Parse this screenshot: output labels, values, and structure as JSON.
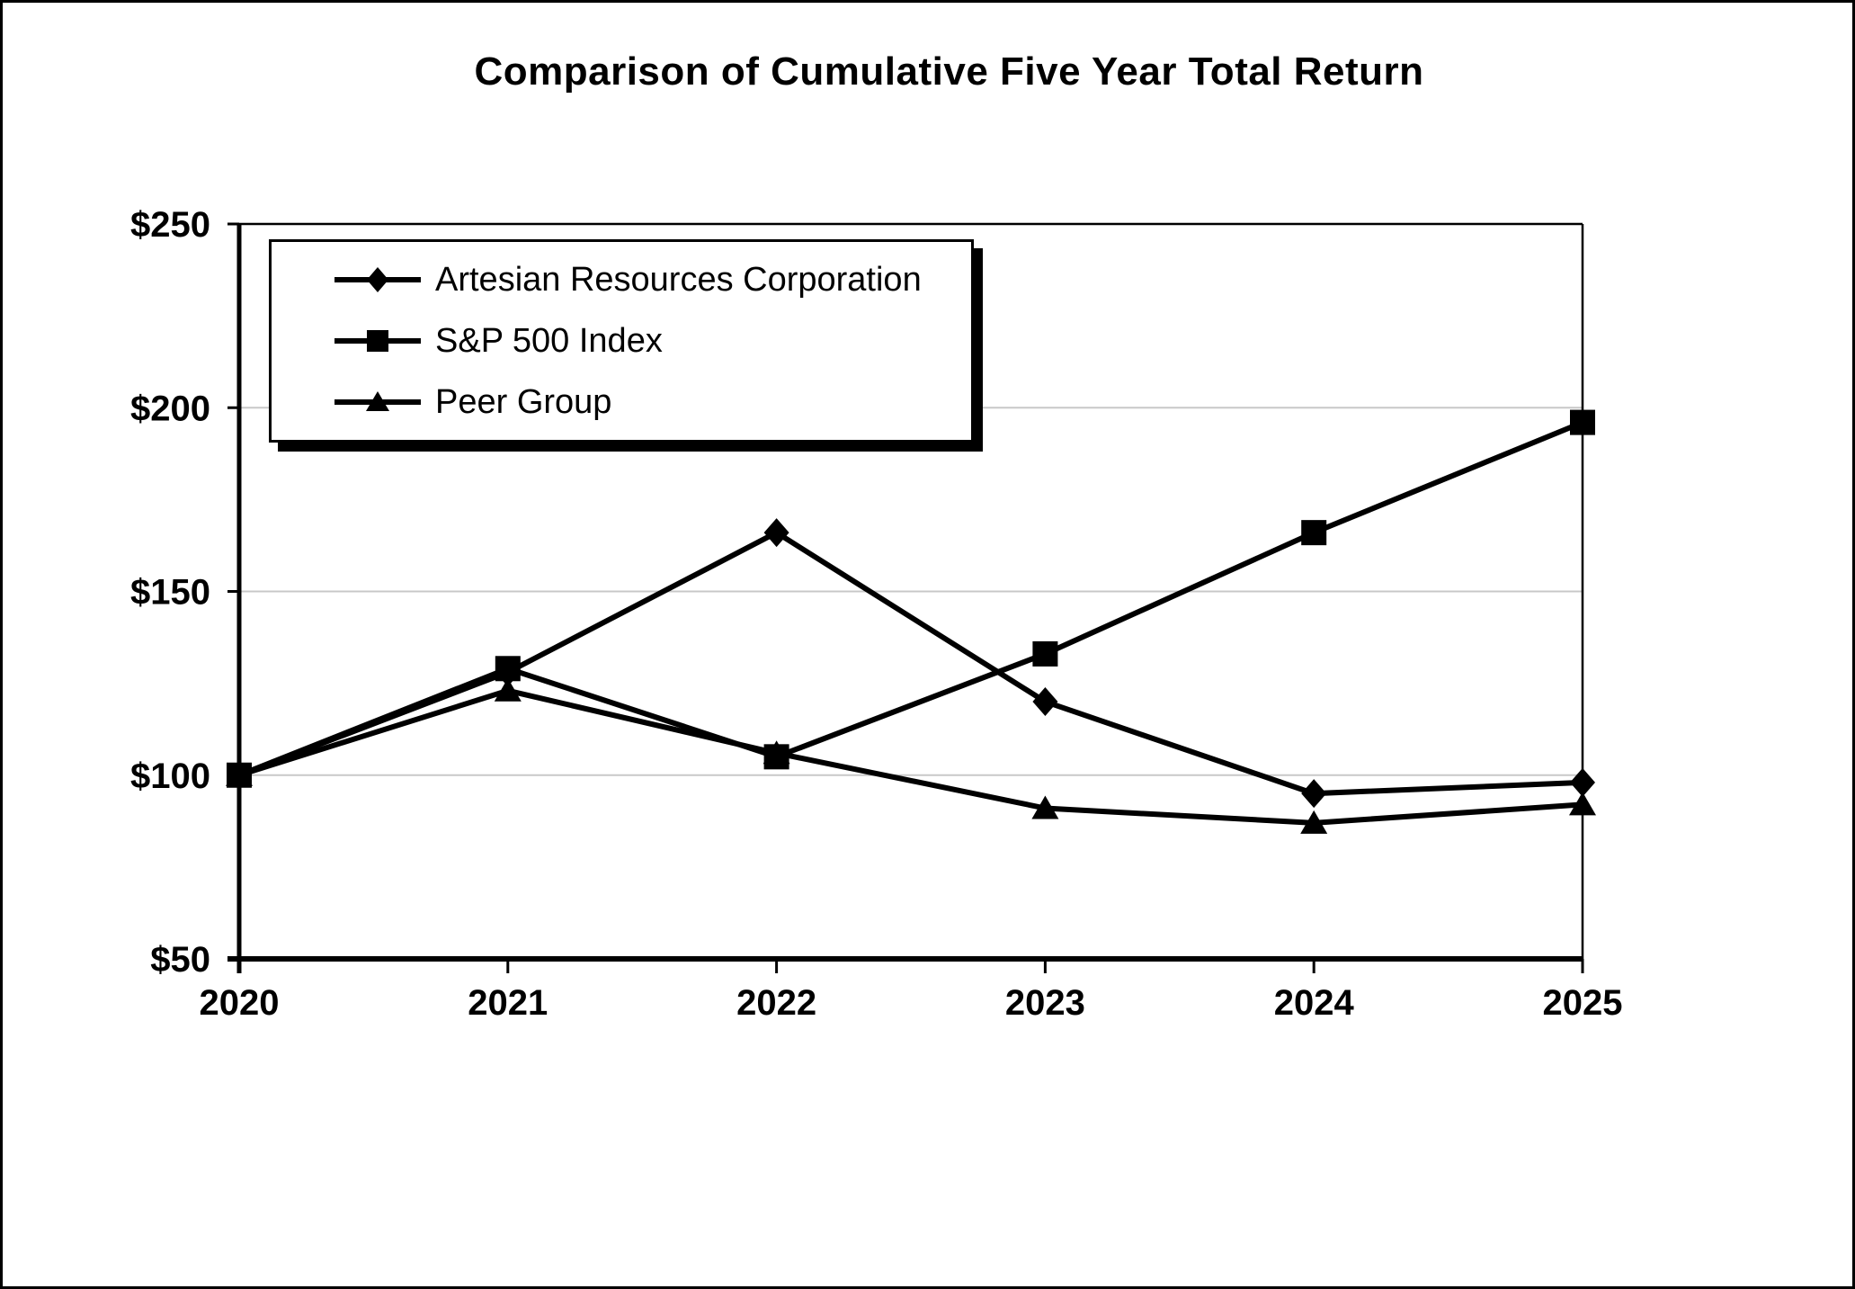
{
  "page": {
    "background_color": "#ffffff",
    "border_color": "#000000"
  },
  "chart_data": {
    "type": "line",
    "title": "Comparison of Cumulative Five Year Total Return",
    "categories": [
      "2020",
      "2021",
      "2022",
      "2023",
      "2024",
      "2025"
    ],
    "series": [
      {
        "name": "Artesian Resources Corporation",
        "marker": "diamond",
        "color": "#000000",
        "values": [
          100,
          128,
          166,
          120,
          95,
          98
        ]
      },
      {
        "name": "S&P 500 Index",
        "marker": "square",
        "color": "#000000",
        "values": [
          100,
          129,
          105,
          133,
          166,
          196
        ]
      },
      {
        "name": "Peer Group",
        "marker": "triangle",
        "color": "#000000",
        "values": [
          100,
          123,
          106,
          91,
          87,
          92
        ]
      }
    ],
    "xlabel": "",
    "ylabel": "",
    "ylim": [
      50,
      250
    ],
    "y_ticks": [
      {
        "label": "$250",
        "value": 250
      },
      {
        "label": "$200",
        "value": 200
      },
      {
        "label": "$150",
        "value": 150
      },
      {
        "label": "$100",
        "value": 100
      },
      {
        "label": "$50",
        "value": 50
      }
    ],
    "grid": "horizontal-gridlines-on",
    "gridline_color": "#c8c8c8",
    "axis_color": "#000000",
    "text_color": "#000000",
    "legend_position": "inside-top-left",
    "legend_entries": [
      "Artesian Resources Corporation",
      "S&P 500 Index",
      "Peer Group"
    ],
    "legend_has_shadow": true
  }
}
